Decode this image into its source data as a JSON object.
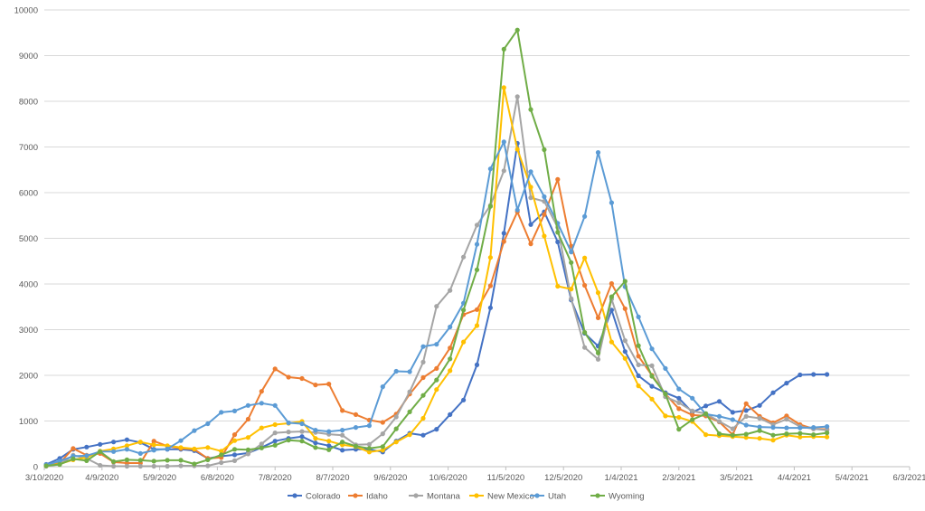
{
  "chart_data": {
    "type": "line",
    "title": "",
    "xlabel": "",
    "ylabel": "",
    "ylim": [
      0,
      10000
    ],
    "yticks": [
      0,
      1000,
      2000,
      3000,
      4000,
      5000,
      6000,
      7000,
      8000,
      9000,
      10000
    ],
    "xlim": [
      "2020-03-10",
      "2021-06-03"
    ],
    "xticks": [
      "3/10/2020",
      "4/9/2020",
      "5/9/2020",
      "6/8/2020",
      "7/8/2020",
      "8/7/2020",
      "9/6/2020",
      "10/6/2020",
      "11/5/2020",
      "12/5/2020",
      "1/4/2021",
      "2/3/2021",
      "3/5/2021",
      "4/4/2021",
      "5/4/2021",
      "6/3/2021"
    ],
    "xtick_dates": [
      "2020-03-10",
      "2020-04-09",
      "2020-05-09",
      "2020-06-08",
      "2020-07-08",
      "2020-08-07",
      "2020-09-06",
      "2020-10-06",
      "2020-11-05",
      "2020-12-05",
      "2021-01-04",
      "2021-02-03",
      "2021-03-05",
      "2021-04-04",
      "2021-05-04",
      "2021-06-03"
    ],
    "grid": "horizontal",
    "legend": "bottom",
    "x": [
      "2020-03-11",
      "2020-03-18",
      "2020-03-25",
      "2020-04-01",
      "2020-04-08",
      "2020-04-15",
      "2020-04-22",
      "2020-04-29",
      "2020-05-06",
      "2020-05-13",
      "2020-05-20",
      "2020-05-27",
      "2020-06-03",
      "2020-06-10",
      "2020-06-17",
      "2020-06-24",
      "2020-07-01",
      "2020-07-08",
      "2020-07-15",
      "2020-07-22",
      "2020-07-29",
      "2020-08-05",
      "2020-08-12",
      "2020-08-19",
      "2020-08-26",
      "2020-09-02",
      "2020-09-09",
      "2020-09-16",
      "2020-09-23",
      "2020-09-30",
      "2020-10-07",
      "2020-10-14",
      "2020-10-21",
      "2020-10-28",
      "2020-11-04",
      "2020-11-11",
      "2020-11-18",
      "2020-11-25",
      "2020-12-02",
      "2020-12-09",
      "2020-12-16",
      "2020-12-23",
      "2020-12-30",
      "2021-01-06",
      "2021-01-13",
      "2021-01-20",
      "2021-01-27",
      "2021-02-03",
      "2021-02-10",
      "2021-02-17",
      "2021-02-24",
      "2021-03-03",
      "2021-03-10",
      "2021-03-17",
      "2021-03-24",
      "2021-03-31",
      "2021-04-07",
      "2021-04-14",
      "2021-04-21"
    ],
    "series": [
      {
        "name": "Colorado",
        "color": "#4472C4",
        "values": [
          50,
          180,
          380,
          430,
          490,
          540,
          590,
          530,
          380,
          380,
          380,
          350,
          180,
          230,
          260,
          300,
          420,
          560,
          620,
          660,
          520,
          460,
          360,
          380,
          380,
          320,
          560,
          730,
          690,
          820,
          1140,
          1460,
          2230,
          3480,
          5110,
          7080,
          5300,
          5580,
          4920,
          3650,
          2920,
          2640,
          3430,
          2520,
          1990,
          1760,
          1620,
          1500,
          1190,
          1330,
          1430,
          1190,
          1230,
          1340,
          1620,
          1830,
          2010,
          2020,
          2020
        ]
      },
      {
        "name": "Idaho",
        "color": "#ED7D31",
        "values": [
          20,
          80,
          400,
          250,
          290,
          100,
          80,
          80,
          560,
          450,
          400,
          380,
          180,
          200,
          700,
          1040,
          1650,
          2140,
          1960,
          1930,
          1790,
          1810,
          1230,
          1140,
          1020,
          970,
          1150,
          1590,
          1950,
          2150,
          2600,
          3330,
          3440,
          3960,
          4930,
          5580,
          4880,
          5520,
          6290,
          4830,
          3970,
          3260,
          4010,
          3460,
          2420,
          2000,
          1590,
          1270,
          1130,
          1110,
          980,
          700,
          1380,
          1100,
          960,
          1110,
          920,
          830,
          820
        ]
      },
      {
        "name": "Montana",
        "color": "#A5A5A5",
        "values": [
          10,
          50,
          250,
          180,
          30,
          10,
          10,
          10,
          10,
          10,
          20,
          20,
          20,
          90,
          130,
          280,
          500,
          740,
          760,
          770,
          750,
          710,
          690,
          480,
          490,
          720,
          1090,
          1640,
          2290,
          3510,
          3860,
          4590,
          5290,
          5720,
          6480,
          8100,
          5890,
          5810,
          5240,
          3680,
          2610,
          2350,
          3670,
          2760,
          2230,
          2210,
          1530,
          1400,
          1220,
          1160,
          990,
          830,
          1100,
          1060,
          920,
          1040,
          880,
          830,
          800
        ]
      },
      {
        "name": "New Mexico",
        "color": "#FFC000",
        "values": [
          20,
          60,
          150,
          200,
          340,
          390,
          460,
          540,
          480,
          460,
          420,
          390,
          420,
          340,
          570,
          640,
          850,
          920,
          950,
          990,
          620,
          560,
          480,
          440,
          320,
          360,
          540,
          700,
          1060,
          1690,
          2100,
          2730,
          3090,
          4580,
          8300,
          6950,
          6120,
          5050,
          3950,
          3890,
          4570,
          3810,
          2730,
          2370,
          1770,
          1480,
          1110,
          1080,
          990,
          700,
          680,
          660,
          640,
          620,
          580,
          690,
          650,
          660,
          650
        ]
      },
      {
        "name": "Utah",
        "color": "#5B9BD5",
        "values": [
          40,
          120,
          230,
          240,
          330,
          330,
          380,
          290,
          360,
          390,
          570,
          790,
          940,
          1190,
          1220,
          1340,
          1390,
          1340,
          960,
          940,
          800,
          770,
          800,
          860,
          900,
          1750,
          2090,
          2080,
          2630,
          2680,
          3060,
          3580,
          4870,
          6520,
          7110,
          5620,
          6460,
          5910,
          5330,
          4700,
          5480,
          6880,
          5780,
          3940,
          3280,
          2580,
          2150,
          1700,
          1500,
          1150,
          1100,
          1030,
          910,
          870,
          860,
          850,
          850,
          860,
          880
        ]
      },
      {
        "name": "Wyoming",
        "color": "#70AD47",
        "values": [
          20,
          50,
          170,
          130,
          330,
          110,
          150,
          140,
          120,
          140,
          140,
          60,
          150,
          260,
          380,
          370,
          410,
          470,
          580,
          560,
          420,
          370,
          540,
          450,
          400,
          440,
          830,
          1200,
          1560,
          1900,
          2360,
          3430,
          4310,
          5700,
          9140,
          9560,
          7820,
          6940,
          5130,
          4470,
          2940,
          2490,
          3720,
          4060,
          2650,
          1980,
          1590,
          820,
          1030,
          1160,
          720,
          690,
          710,
          790,
          690,
          720,
          730,
          700,
          740
        ]
      }
    ]
  }
}
